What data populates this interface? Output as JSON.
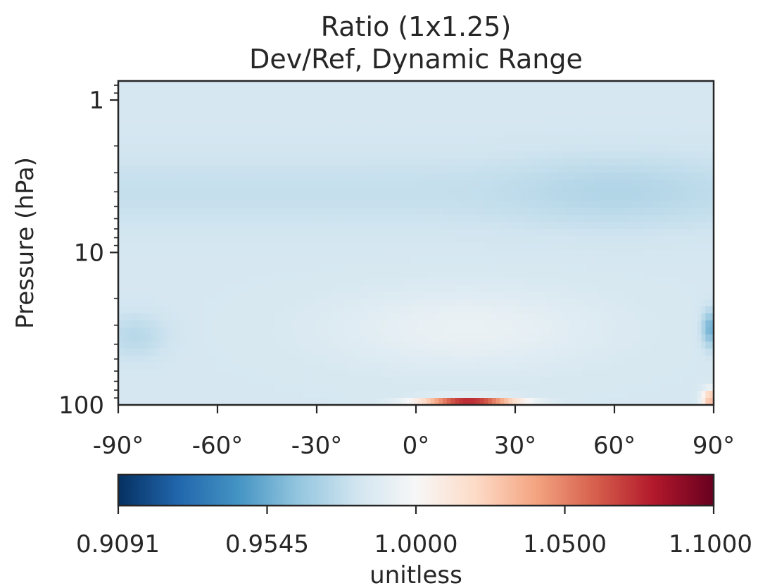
{
  "chart_data": {
    "type": "heatmap",
    "title": "Ratio (1x1.25)",
    "subtitle": "Dev/Ref, Dynamic Range",
    "xlabel": "",
    "ylabel": "Pressure (hPa)",
    "x_ticks": [
      "-90°",
      "-60°",
      "-30°",
      "0°",
      "30°",
      "60°",
      "90°"
    ],
    "x_tick_values": [
      -90,
      -60,
      -30,
      0,
      30,
      60,
      90
    ],
    "y_ticks": [
      "1",
      "10",
      "100"
    ],
    "y_tick_values": [
      1,
      10,
      100
    ],
    "y_scale": "log",
    "y_inverted": true,
    "xlim": [
      -90,
      90
    ],
    "ylim": [
      100,
      0.75
    ],
    "colorbar": {
      "label": "unitless",
      "ticks": [
        "0.9091",
        "0.9545",
        "1.0000",
        "1.0500",
        "1.1000"
      ],
      "tick_values": [
        0.9091,
        0.9545,
        1.0,
        1.05,
        1.1
      ],
      "range": [
        0.9091,
        1.1
      ],
      "colormap": "RdBu_r",
      "colors": [
        "#053061",
        "#2166ac",
        "#4393c3",
        "#92c5de",
        "#d1e5f0",
        "#f7f7f7",
        "#fddbc7",
        "#f4a582",
        "#d6604d",
        "#b2182b",
        "#67001f"
      ]
    },
    "features": [
      {
        "description": "strong maximum near 100 hPa",
        "lat_range": [
          0,
          30
        ],
        "pressure": 100,
        "value": 1.1
      },
      {
        "description": "moderate maximum near 100 hPa",
        "lat_range": [
          85,
          90
        ],
        "pressure": 90,
        "value": 1.05
      },
      {
        "description": "local minimum",
        "lat_range": [
          85,
          90
        ],
        "pressure": 30,
        "value": 0.955
      },
      {
        "description": "weak minimum upper levels",
        "lat_range": [
          30,
          90
        ],
        "pressure": 5,
        "value": 0.975
      },
      {
        "description": "near unity tropics mid-levels",
        "lat_range": [
          -20,
          40
        ],
        "pressure": 30,
        "value": 1.0
      }
    ]
  }
}
